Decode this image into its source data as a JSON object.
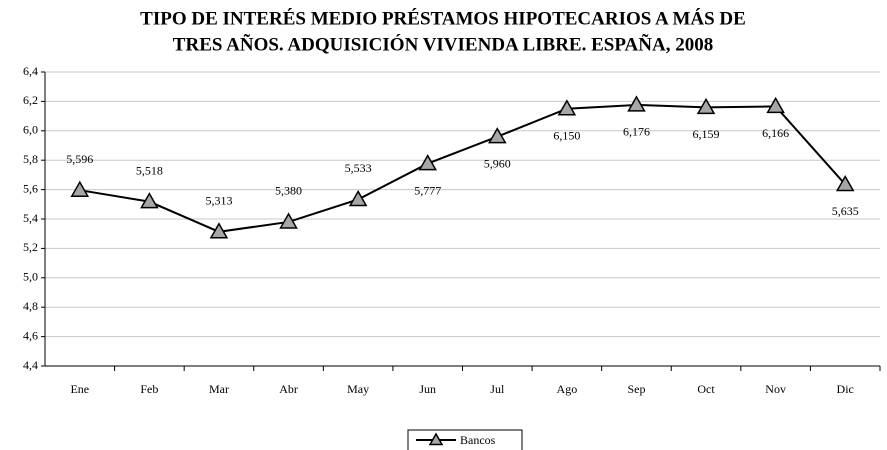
{
  "chart_data": {
    "type": "line",
    "title": [
      "TIPO DE INTERÉS MEDIO PRÉSTAMOS HIPOTECARIOS A MÁS DE",
      "TRES AÑOS. ADQUISICIÓN VIVIENDA LIBRE. ESPAÑA, 2008"
    ],
    "categories": [
      "Ene",
      "Feb",
      "Mar",
      "Abr",
      "May",
      "Jun",
      "Jul",
      "Ago",
      "Sep",
      "Oct",
      "Nov",
      "Dic"
    ],
    "series": [
      {
        "name": "Bancos",
        "color": "#000000",
        "marker_color": "#a6a6a6",
        "values": [
          5.596,
          5.518,
          5.313,
          5.38,
          5.533,
          5.777,
          5.96,
          6.15,
          6.176,
          6.159,
          6.166,
          5.635
        ],
        "value_labels": [
          "5,596",
          "5,518",
          "5,313",
          "5,380",
          "5,533",
          "5,777",
          "5,960",
          "6,150",
          "6,176",
          "6,159",
          "6,166",
          "5,635"
        ]
      }
    ],
    "ylim": [
      4.4,
      6.4
    ],
    "yticks": [
      {
        "value": 4.4,
        "label": "4,4"
      },
      {
        "value": 4.6,
        "label": "4,6"
      },
      {
        "value": 4.8,
        "label": "4,8"
      },
      {
        "value": 5.0,
        "label": "5,0"
      },
      {
        "value": 5.2,
        "label": "5,2"
      },
      {
        "value": 5.4,
        "label": "5,4"
      },
      {
        "value": 5.6,
        "label": "5,6"
      },
      {
        "value": 5.8,
        "label": "5,8"
      },
      {
        "value": 6.0,
        "label": "6,0"
      },
      {
        "value": 6.2,
        "label": "6,2"
      },
      {
        "value": 6.4,
        "label": "6,4"
      }
    ],
    "grid": true,
    "legend": "bottom"
  }
}
